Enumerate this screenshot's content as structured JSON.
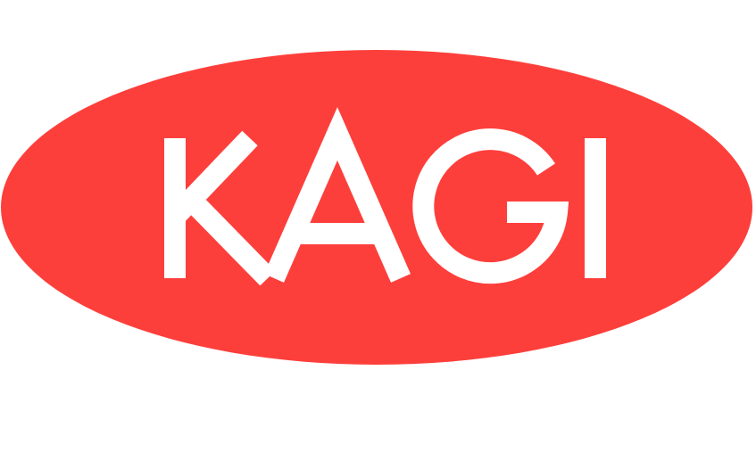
{
  "logo": {
    "text": "KAGI",
    "background_color": "#fd3f3b",
    "text_color": "#ffffff",
    "page_color": "#ffffff"
  }
}
